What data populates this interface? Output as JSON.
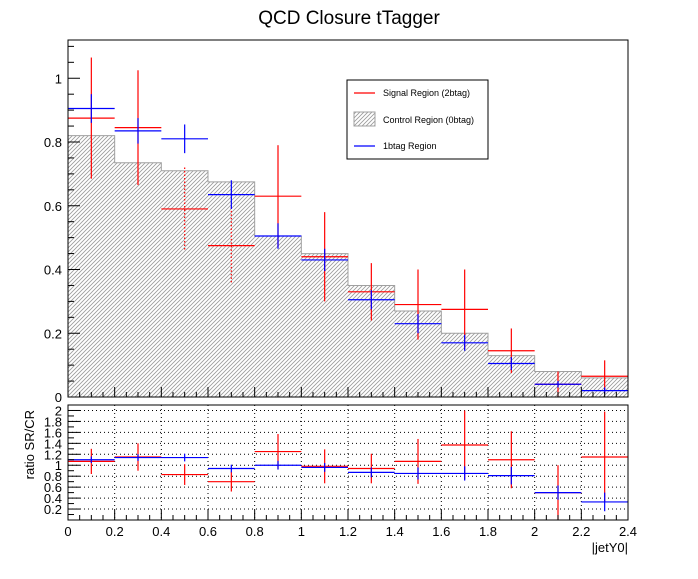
{
  "chart_data": [
    {
      "panel": "main",
      "type": "bar",
      "title": "QCD Closure tTagger",
      "xlabel": "",
      "ylabel": "",
      "bin_edges": [
        0,
        0.2,
        0.4,
        0.6,
        0.8,
        1.0,
        1.2,
        1.4,
        1.6,
        1.8,
        2.0,
        2.2,
        2.4
      ],
      "xlim": [
        0,
        2.4
      ],
      "ylim": [
        0,
        1.12
      ],
      "y_ticks": [
        "0",
        "0.2",
        "0.4",
        "0.6",
        "0.8",
        "1"
      ],
      "legend_position": "top-right",
      "series": [
        {
          "name": "Control Region (0btag)",
          "style": "hatched-fill",
          "color": "#808080",
          "values": [
            0.82,
            0.735,
            0.71,
            0.675,
            0.505,
            0.45,
            0.35,
            0.27,
            0.2,
            0.13,
            0.08,
            0.06
          ]
        },
        {
          "name": "Signal Region (2btag)",
          "style": "error-cross",
          "color": "#ff0000",
          "values": [
            0.875,
            0.845,
            0.59,
            0.475,
            0.63,
            0.44,
            0.33,
            0.29,
            0.275,
            0.145,
            0.04,
            0.065
          ],
          "errors": [
            0.19,
            0.18,
            0.13,
            0.12,
            0.16,
            0.14,
            0.09,
            0.11,
            0.125,
            0.07,
            0.04,
            0.05
          ]
        },
        {
          "name": "1btag Region",
          "style": "error-cross",
          "color": "#0000ff",
          "values": [
            0.905,
            0.835,
            0.81,
            0.635,
            0.505,
            0.43,
            0.305,
            0.23,
            0.17,
            0.105,
            0.04,
            0.02
          ],
          "errors": [
            0.045,
            0.04,
            0.045,
            0.045,
            0.04,
            0.035,
            0.03,
            0.03,
            0.025,
            0.02,
            0.01,
            0.01
          ]
        }
      ]
    },
    {
      "panel": "ratio",
      "type": "line",
      "xlabel": "|jetY0|",
      "ylabel": "ratio SR/CR",
      "bin_edges": [
        0,
        0.2,
        0.4,
        0.6,
        0.8,
        1.0,
        1.2,
        1.4,
        1.6,
        1.8,
        2.0,
        2.2,
        2.4
      ],
      "xlim": [
        0,
        2.4
      ],
      "ylim": [
        0,
        2.1
      ],
      "grid": true,
      "x_ticks": [
        "0",
        "0.2",
        "0.4",
        "0.6",
        "0.8",
        "1",
        "1.2",
        "1.4",
        "1.6",
        "1.8",
        "2",
        "2.2",
        "2.4"
      ],
      "y_ticks": [
        "0.2",
        "0.4",
        "0.6",
        "0.8",
        "1",
        "1.2",
        "1.4",
        "1.6",
        "1.8",
        "2"
      ],
      "series": [
        {
          "name": "Signal Region (2btag)",
          "color": "#ff0000",
          "values": [
            1.07,
            1.15,
            0.83,
            0.7,
            1.25,
            0.98,
            0.94,
            1.07,
            1.37,
            1.1,
            0.5,
            1.15
          ],
          "errors": [
            0.23,
            0.25,
            0.19,
            0.18,
            0.32,
            0.31,
            0.27,
            0.41,
            0.63,
            0.52,
            0.5,
            0.83
          ]
        },
        {
          "name": "1btag Region",
          "color": "#0000ff",
          "values": [
            1.1,
            1.14,
            1.14,
            0.94,
            1.0,
            0.96,
            0.87,
            0.85,
            0.85,
            0.81,
            0.5,
            0.33
          ],
          "errors": [
            0.06,
            0.06,
            0.07,
            0.07,
            0.08,
            0.08,
            0.09,
            0.11,
            0.13,
            0.16,
            0.13,
            0.17
          ]
        }
      ]
    }
  ]
}
